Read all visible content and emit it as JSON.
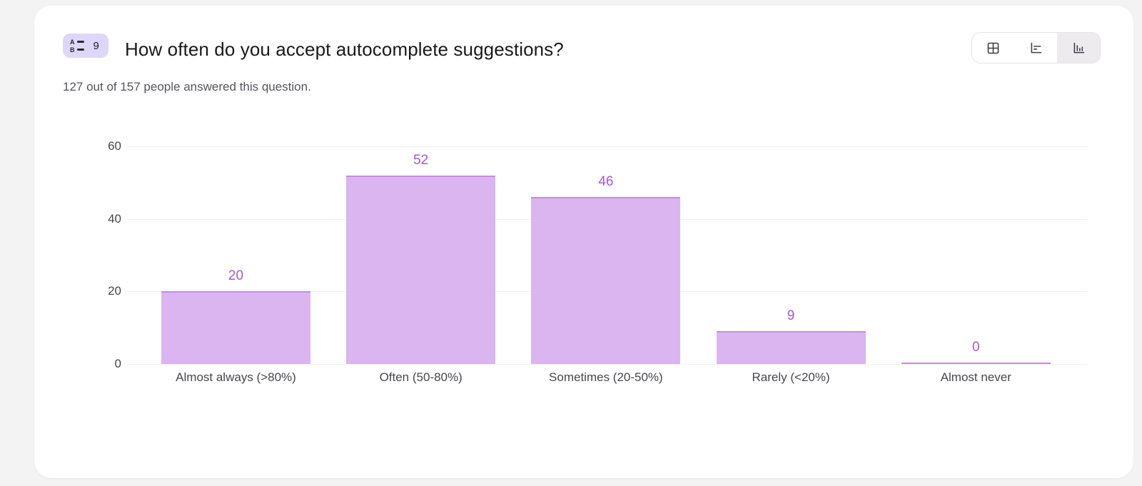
{
  "colors": {
    "page_background": "#f4f3f3",
    "card_background": "#ffffff",
    "badge_background": "#ded7fb",
    "bar_fill": "#dab5f0",
    "bar_border": "#c88ce4",
    "value_label": "#a757d4",
    "gridline": "#f0eff1",
    "axis_text": "#47474f",
    "toggle_selected_background": "#edebee"
  },
  "header": {
    "badge": {
      "icon": "multiple-choice-icon",
      "icon_rows": [
        "A",
        "B"
      ],
      "number": "9"
    },
    "title": "How often do you accept autocomplete suggestions?",
    "subtitle": "127 out of 157 people answered this question."
  },
  "view_toggle": {
    "options": [
      {
        "name": "table-view",
        "icon": "table-icon",
        "selected": false
      },
      {
        "name": "horizontal-bar-view",
        "icon": "bar-chart-horizontal-icon",
        "selected": false
      },
      {
        "name": "vertical-bar-view",
        "icon": "bar-chart-vertical-icon",
        "selected": true
      }
    ]
  },
  "chart_data": {
    "type": "bar",
    "categories": [
      "Almost always (>80%)",
      "Often (50-80%)",
      "Sometimes (20-50%)",
      "Rarely (<20%)",
      "Almost never"
    ],
    "values": [
      20,
      52,
      46,
      9,
      0
    ],
    "title": "How often do you accept autocomplete suggestions?",
    "xlabel": "",
    "ylabel": "",
    "ylim": [
      0,
      60
    ],
    "yticks": [
      0,
      20,
      40,
      60
    ],
    "grid": true,
    "legend": "none",
    "value_labels_shown": true
  }
}
